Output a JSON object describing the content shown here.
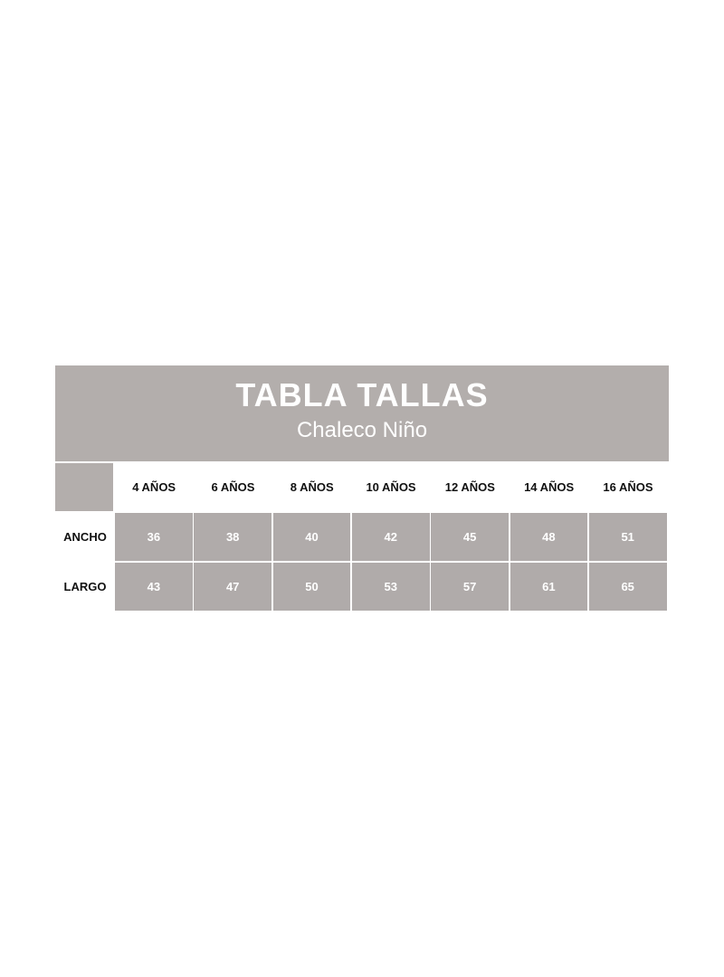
{
  "header": {
    "title": "TABLA TALLAS",
    "subtitle": "Chaleco Niño"
  },
  "table": {
    "columns": [
      "4 AÑOS",
      "6 AÑOS",
      "8 AÑOS",
      "10 AÑOS",
      "12 AÑOS",
      "14 AÑOS",
      "16 AÑOS"
    ],
    "rows": [
      {
        "label": "ANCHO",
        "values": [
          36,
          38,
          40,
          42,
          45,
          48,
          51
        ]
      },
      {
        "label": "LARGO",
        "values": [
          43,
          47,
          50,
          53,
          57,
          61,
          65
        ]
      }
    ]
  }
}
